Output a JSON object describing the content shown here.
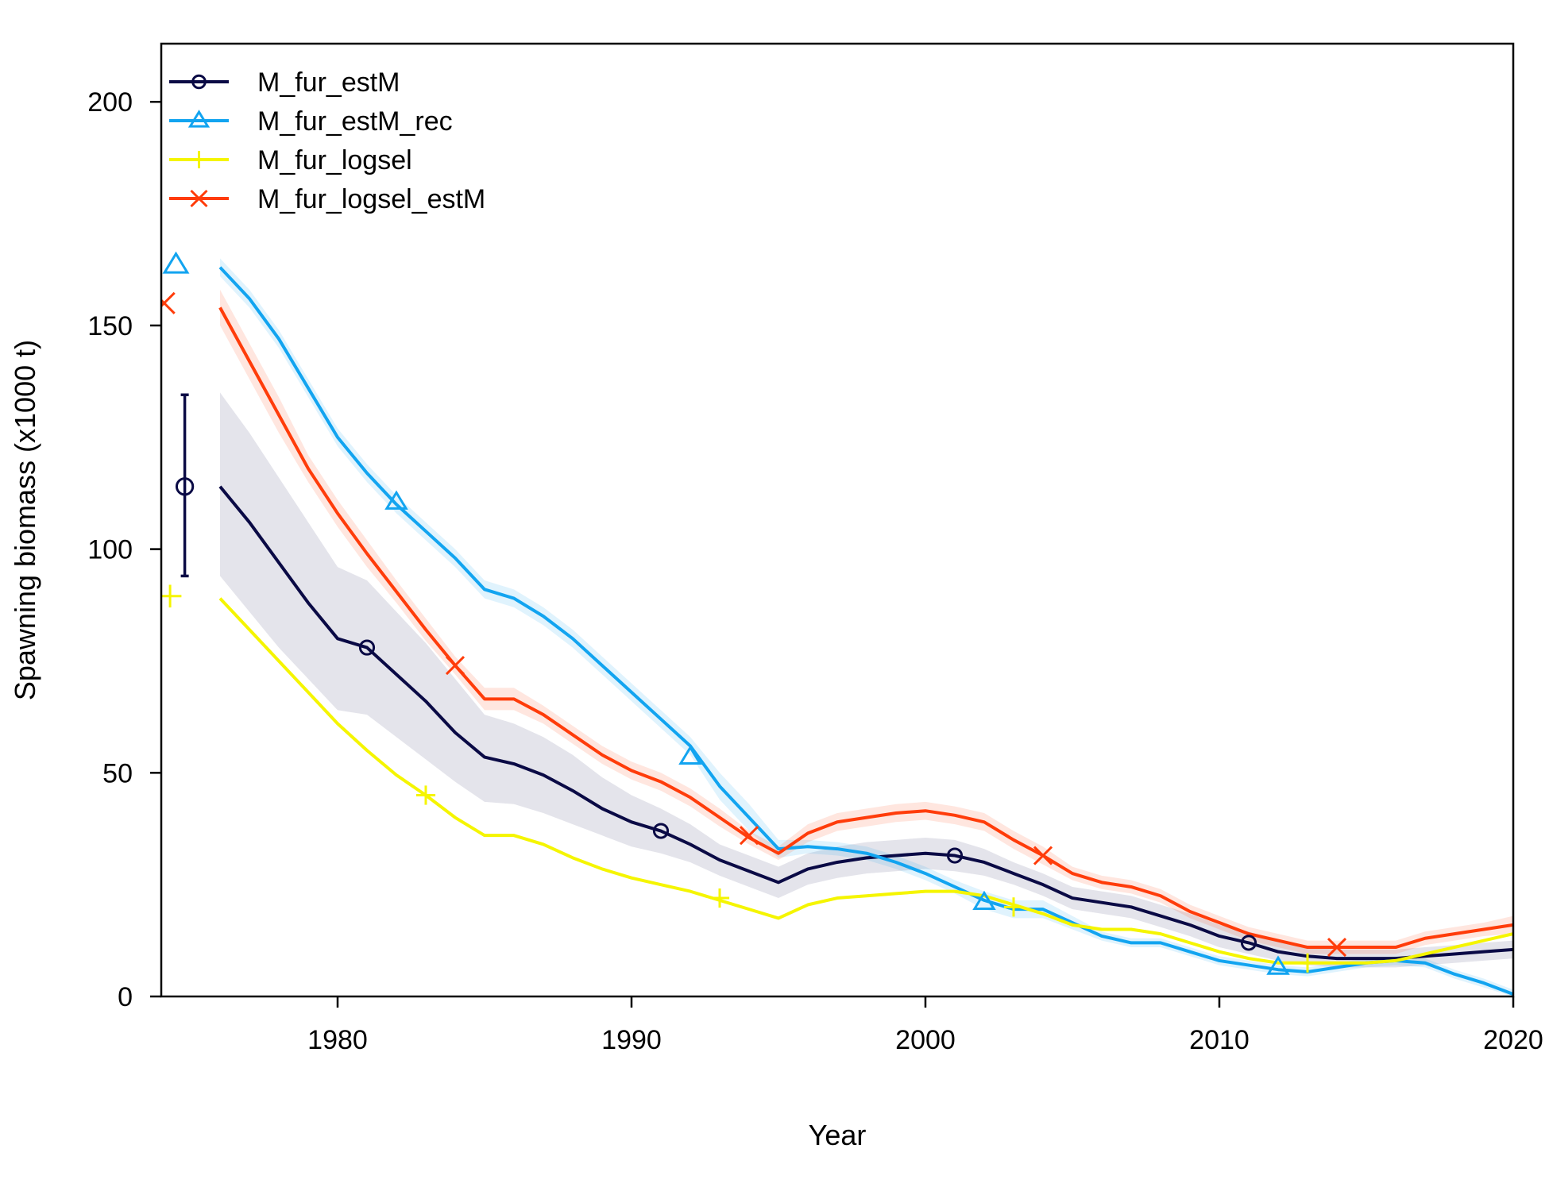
{
  "chart_data": {
    "type": "line",
    "xlabel": "Year",
    "ylabel": "Spawning biomass (x1000 t)",
    "xlim": [
      1974,
      2020
    ],
    "ylim": [
      0,
      213
    ],
    "x_ticks": [
      1980,
      1990,
      2000,
      2010,
      2020
    ],
    "y_ticks": [
      0,
      50,
      100,
      150,
      200
    ],
    "grid": false,
    "legend_position": "top-left",
    "series": [
      {
        "name": "M_fur_estM",
        "color": "#0a0a45",
        "marker": "circle",
        "band": true,
        "x": [
          1976,
          1977,
          1978,
          1979,
          1980,
          1981,
          1982,
          1983,
          1984,
          1985,
          1986,
          1987,
          1988,
          1989,
          1990,
          1991,
          1992,
          1993,
          1994,
          1995,
          1996,
          1997,
          1998,
          1999,
          2000,
          2001,
          2002,
          2003,
          2004,
          2005,
          2006,
          2007,
          2008,
          2009,
          2010,
          2011,
          2012,
          2013,
          2014,
          2015,
          2016,
          2017,
          2018,
          2019,
          2020
        ],
        "y": [
          114,
          106,
          97,
          88,
          80,
          78,
          72,
          66,
          59,
          53.5,
          52,
          49.5,
          46,
          42,
          39,
          37,
          34,
          30.5,
          28,
          25.5,
          28.5,
          30,
          31,
          31.5,
          32,
          31.5,
          30,
          27.5,
          25,
          22,
          21,
          20,
          18,
          16,
          13.5,
          12,
          10,
          9,
          8.5,
          8.5,
          8.5,
          9,
          9.5,
          10,
          10.5
        ],
        "lower": [
          94,
          86,
          78,
          71,
          64,
          63,
          58,
          53,
          48,
          43.5,
          43,
          41,
          38.5,
          36,
          33.5,
          32,
          30,
          27,
          24.5,
          22,
          25,
          26.5,
          27.5,
          28,
          28.5,
          28,
          27,
          25,
          22.5,
          19.5,
          18.5,
          17.5,
          15.5,
          13.5,
          11,
          9.5,
          8,
          7,
          6.5,
          6.5,
          6.5,
          7,
          7.5,
          8,
          8.5
        ],
        "upper": [
          135,
          126,
          116,
          106,
          96,
          93,
          86,
          79,
          71,
          63,
          61,
          58,
          54,
          49,
          45,
          42,
          38.5,
          34,
          31.5,
          29,
          32,
          33.5,
          34.5,
          35,
          35.5,
          35,
          33,
          30,
          27.5,
          24.5,
          23.5,
          22.5,
          20.5,
          18.5,
          16,
          14.5,
          12.5,
          11,
          10.5,
          10.5,
          10.5,
          11,
          11.5,
          12,
          12.5
        ],
        "initial": {
          "x": 1974.8,
          "y": 114,
          "lower": 94,
          "upper": 134.5
        }
      },
      {
        "name": "M_fur_estM_rec",
        "color": "#12a4f0",
        "marker": "triangle",
        "band": true,
        "x": [
          1976,
          1977,
          1978,
          1979,
          1980,
          1981,
          1982,
          1983,
          1984,
          1985,
          1986,
          1987,
          1988,
          1989,
          1990,
          1991,
          1992,
          1993,
          1994,
          1995,
          1996,
          1997,
          1998,
          1999,
          2000,
          2001,
          2002,
          2003,
          2004,
          2005,
          2006,
          2007,
          2008,
          2009,
          2010,
          2011,
          2012,
          2013,
          2014,
          2015,
          2016,
          2017,
          2018,
          2019,
          2020
        ],
        "y": [
          163,
          156,
          147,
          136,
          125,
          117,
          110,
          104,
          98,
          91,
          89,
          85,
          80,
          74,
          68,
          62,
          56,
          47,
          40,
          33,
          33.5,
          33,
          32,
          30,
          27.5,
          24.5,
          21.5,
          19.5,
          19.5,
          16.5,
          13.5,
          12,
          12,
          10,
          8,
          7,
          6,
          5.5,
          6.5,
          7.5,
          8,
          7.5,
          5,
          3,
          0.5
        ],
        "lower": [
          161,
          154,
          145,
          134,
          123,
          115,
          108,
          102,
          96,
          89,
          87,
          83,
          78,
          72,
          66,
          60,
          54,
          44,
          37,
          31,
          32,
          31.5,
          30.5,
          28.5,
          26,
          23,
          19.5,
          17.5,
          17.5,
          15,
          12.5,
          11,
          11,
          9,
          7,
          6,
          5,
          4.5,
          5.5,
          6.5,
          7,
          6.5,
          4,
          2,
          0
        ],
        "upper": [
          165,
          158,
          149,
          138,
          127,
          119,
          112,
          106,
          100,
          93,
          91,
          87,
          82,
          76,
          70,
          64,
          58,
          50,
          43,
          35,
          35,
          34.5,
          33.5,
          31.5,
          29,
          26,
          23.5,
          21.5,
          21.5,
          18,
          14.5,
          13,
          13,
          11,
          9,
          8,
          7,
          6.5,
          7.5,
          8.5,
          9,
          8.5,
          6,
          4,
          1.5
        ],
        "initial": {
          "x": 1974.5,
          "y": 163.5
        }
      },
      {
        "name": "M_fur_logsel",
        "color": "#f5f500",
        "marker": "plus",
        "band": false,
        "x": [
          1976,
          1977,
          1978,
          1979,
          1980,
          1981,
          1982,
          1983,
          1984,
          1985,
          1986,
          1987,
          1988,
          1989,
          1990,
          1991,
          1992,
          1993,
          1994,
          1995,
          1996,
          1997,
          1998,
          1999,
          2000,
          2001,
          2002,
          2003,
          2004,
          2005,
          2006,
          2007,
          2008,
          2009,
          2010,
          2011,
          2012,
          2013,
          2014,
          2015,
          2016,
          2017,
          2018,
          2019,
          2020
        ],
        "y": [
          89,
          82,
          75,
          68,
          61,
          55,
          49.5,
          45,
          40,
          36,
          36,
          34,
          31,
          28.5,
          26.5,
          25,
          23.5,
          21.5,
          19.5,
          17.5,
          20.5,
          22,
          22.5,
          23,
          23.5,
          23.5,
          22.5,
          20.5,
          18.5,
          16,
          15,
          15,
          14,
          12,
          10,
          8.5,
          7.5,
          7.5,
          7.5,
          7.5,
          8,
          9.5,
          11,
          12.5,
          14
        ],
        "initial": {
          "x": 1974.3,
          "y": 89.5
        }
      },
      {
        "name": "M_fur_logsel_estM",
        "color": "#ff3c0a",
        "marker": "cross",
        "band": true,
        "x": [
          1976,
          1977,
          1978,
          1979,
          1980,
          1981,
          1982,
          1983,
          1984,
          1985,
          1986,
          1987,
          1988,
          1989,
          1990,
          1991,
          1992,
          1993,
          1994,
          1995,
          1996,
          1997,
          1998,
          1999,
          2000,
          2001,
          2002,
          2003,
          2004,
          2005,
          2006,
          2007,
          2008,
          2009,
          2010,
          2011,
          2012,
          2013,
          2014,
          2015,
          2016,
          2017,
          2018,
          2019,
          2020
        ],
        "y": [
          154,
          142,
          130,
          118,
          108,
          99,
          90.5,
          82,
          74,
          66.5,
          66.5,
          63,
          58.5,
          54,
          50.5,
          48,
          44.5,
          40,
          35.5,
          32,
          36.5,
          39,
          40,
          41,
          41.5,
          40.5,
          39,
          35,
          31.5,
          27.5,
          25.5,
          24.5,
          22.5,
          19,
          16.5,
          14,
          12.5,
          11,
          11,
          11,
          11,
          13,
          14,
          15,
          16
        ],
        "lower": [
          150,
          138,
          126,
          115,
          105,
          96,
          88,
          79.5,
          72,
          64,
          64,
          61,
          56.5,
          52,
          48.5,
          46,
          42.5,
          38,
          34,
          30.5,
          34.5,
          37,
          38,
          39,
          39.5,
          38.5,
          37,
          33,
          29.5,
          26,
          24,
          23,
          21,
          17.5,
          15,
          12.5,
          11,
          9.5,
          9.5,
          9.5,
          9.5,
          11.5,
          12.5,
          13.5,
          14
        ],
        "upper": [
          158,
          146,
          134,
          121,
          111,
          102,
          93,
          84.5,
          76,
          69,
          69,
          65,
          60.5,
          56,
          52.5,
          50,
          46.5,
          42,
          37,
          33.5,
          38.5,
          41,
          42,
          43,
          43.5,
          42.5,
          41,
          37,
          33.5,
          29,
          27,
          26,
          24,
          20.5,
          18,
          15.5,
          14,
          12.5,
          12.5,
          12.5,
          12.5,
          14.5,
          15.5,
          16.5,
          18
        ],
        "initial": {
          "x": 1974.1,
          "y": 155
        }
      }
    ],
    "markers": [
      {
        "series": 0,
        "x": 1981,
        "y": 78
      },
      {
        "series": 0,
        "x": 1991,
        "y": 37
      },
      {
        "series": 0,
        "x": 2001,
        "y": 31.5
      },
      {
        "series": 0,
        "x": 2011,
        "y": 12
      },
      {
        "series": 1,
        "x": 1982,
        "y": 110.5
      },
      {
        "series": 1,
        "x": 1992,
        "y": 53.5
      },
      {
        "series": 1,
        "x": 2002,
        "y": 21
      },
      {
        "series": 1,
        "x": 2012,
        "y": 6.5
      },
      {
        "series": 2,
        "x": 1983,
        "y": 45
      },
      {
        "series": 2,
        "x": 1993,
        "y": 22
      },
      {
        "series": 2,
        "x": 2003,
        "y": 20
      },
      {
        "series": 2,
        "x": 2013,
        "y": 7.5
      },
      {
        "series": 3,
        "x": 1984,
        "y": 74
      },
      {
        "series": 3,
        "x": 1994,
        "y": 36
      },
      {
        "series": 3,
        "x": 2004,
        "y": 31.5
      },
      {
        "series": 3,
        "x": 2014,
        "y": 11
      }
    ]
  }
}
